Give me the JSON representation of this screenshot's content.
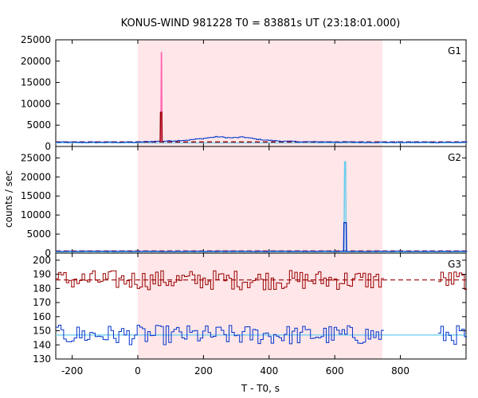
{
  "chart_data": [
    {
      "type": "line",
      "panel": "G1",
      "title": "KONUS-WIND 981228 T0 = 83881s UT (23:18:01.000)",
      "xlabel": "T - T0, s",
      "ylabel": "counts / sec",
      "xlim": [
        -250,
        1000
      ],
      "ylim": [
        0,
        25000
      ],
      "yticks": [
        0,
        5000,
        10000,
        15000,
        20000,
        25000
      ],
      "xticks": [
        -200,
        0,
        200,
        400,
        600,
        800
      ],
      "shaded_interval": [
        0,
        745
      ],
      "background_level": 1000,
      "series": [
        {
          "name": "peak-pink",
          "color": "#ff66b3",
          "x": [
            70,
            71.5,
            72.5,
            74
          ],
          "y": [
            1000,
            22000,
            22000,
            1000
          ]
        },
        {
          "name": "peak-dark",
          "color": "#990000",
          "x": [
            68,
            69,
            73,
            74
          ],
          "y": [
            1000,
            8000,
            8000,
            1000
          ]
        },
        {
          "name": "light-curve",
          "color": "#0033cc",
          "x": [
            -250,
            0,
            50,
            100,
            150,
            200,
            240,
            280,
            320,
            360,
            400,
            450,
            500,
            600,
            745
          ],
          "y": [
            1000,
            1050,
            1200,
            1300,
            1500,
            1900,
            2300,
            2000,
            2200,
            1700,
            1400,
            1200,
            1100,
            1050,
            1000
          ]
        }
      ]
    },
    {
      "type": "line",
      "panel": "G2",
      "xlim": [
        -250,
        1000
      ],
      "ylim": [
        0,
        28000
      ],
      "yticks": [
        0,
        5000,
        10000,
        15000,
        20000,
        25000
      ],
      "shaded_interval": [
        0,
        745
      ],
      "background_level": 500,
      "series": [
        {
          "name": "peak-cyan",
          "color": "#66ccee",
          "x": [
            628,
            630,
            633,
            635
          ],
          "y": [
            500,
            24000,
            24000,
            500
          ]
        },
        {
          "name": "peak-blue",
          "color": "#0033cc",
          "x": [
            627,
            628,
            635,
            636
          ],
          "y": [
            500,
            8000,
            8000,
            500
          ]
        }
      ]
    },
    {
      "type": "line",
      "panel": "G3",
      "xlim": [
        -250,
        1000
      ],
      "ylim": [
        130,
        205
      ],
      "yticks": [
        130,
        140,
        150,
        160,
        170,
        180,
        190,
        200
      ],
      "shaded_interval": [
        0,
        745
      ],
      "series": [
        {
          "name": "upper-channel",
          "color": "#990000",
          "mean": 186
        },
        {
          "name": "lower-channel",
          "color": "#0033cc",
          "mean": 147
        }
      ]
    }
  ]
}
